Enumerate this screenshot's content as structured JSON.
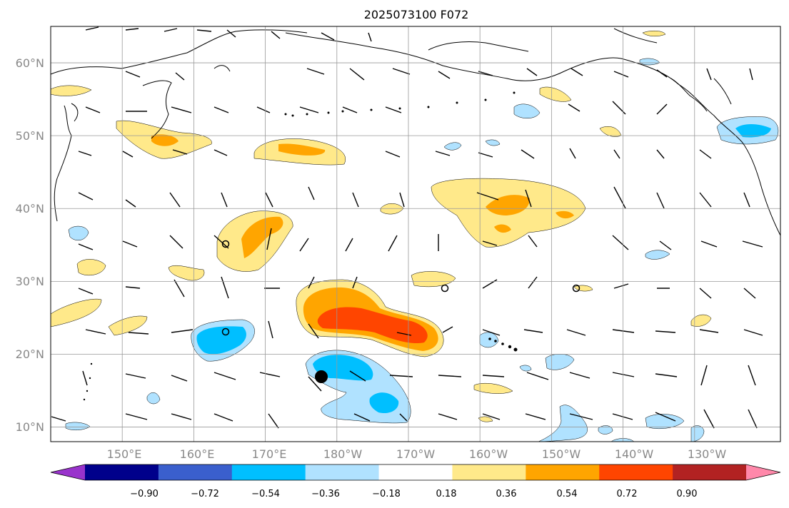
{
  "title": "2025073100 F072",
  "map": {
    "lat_labels": [
      "60°N",
      "50°N",
      "40°N",
      "30°N",
      "20°N",
      "10°N"
    ],
    "lon_labels": [
      "150°E",
      "160°E",
      "170°E",
      "180°W",
      "170°W",
      "160°W",
      "150°W",
      "140°W",
      "130°W"
    ],
    "lat_values": [
      60,
      50,
      40,
      30,
      20,
      10
    ],
    "lon_values": [
      150,
      160,
      170,
      180,
      190,
      200,
      210,
      220,
      230
    ],
    "extent": {
      "lon": [
        140,
        242
      ],
      "lat": [
        8,
        65
      ]
    },
    "grid": true
  },
  "colorbar": {
    "ticks": [
      "−0.90",
      "−0.72",
      "−0.54",
      "−0.36",
      "−0.18",
      "0.18",
      "0.36",
      "0.54",
      "0.72",
      "0.90"
    ],
    "colors": [
      "#9933cc",
      "#00008b",
      "#3a5fcd",
      "#00bfff",
      "#b0e2ff",
      "#ffffff",
      "#ffe98a",
      "#ffa500",
      "#ff4500",
      "#b22222",
      "#ff88aa"
    ],
    "extend": "both"
  }
}
